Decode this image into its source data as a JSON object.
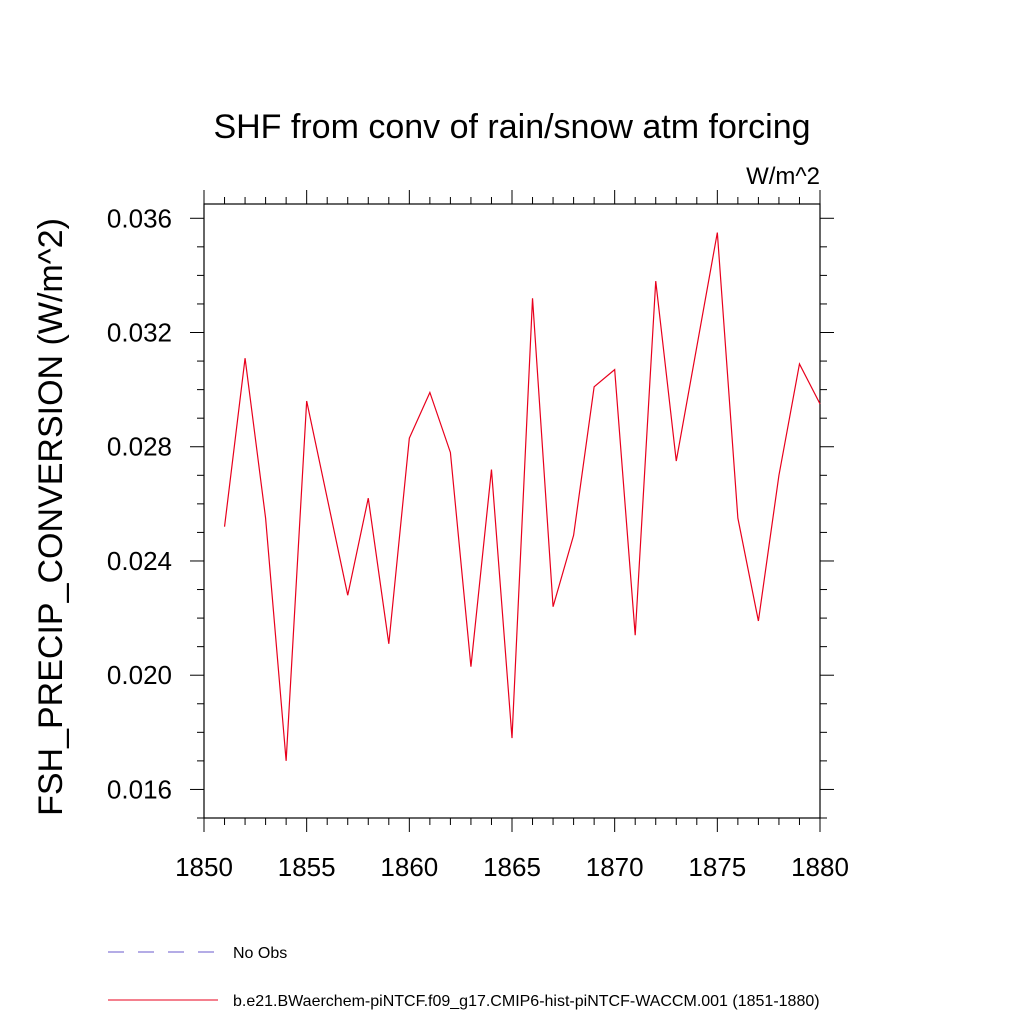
{
  "chart_data": {
    "type": "line",
    "title": "SHF from conv of rain/snow atm forcing",
    "units": "W/m^2",
    "ylabel": "FSH_PRECIP_CONVERSION  (W/m^2)",
    "xlabel": "",
    "xlim": [
      1850,
      1880
    ],
    "ylim": [
      0.015,
      0.0365
    ],
    "x_ticks": [
      "1850",
      "1855",
      "1860",
      "1865",
      "1870",
      "1875",
      "1880"
    ],
    "y_ticks": [
      "0.016",
      "0.020",
      "0.024",
      "0.028",
      "0.032",
      "0.036"
    ],
    "grid": false,
    "series": [
      {
        "name": "b.e21.BWaerchem-piNTCF.f09_g17.CMIP6-hist-piNTCF-WACCM.001 (1851-1880)",
        "color": "#e8001c",
        "x": [
          1851,
          1852,
          1853,
          1854,
          1855,
          1856,
          1857,
          1858,
          1859,
          1860,
          1861,
          1862,
          1863,
          1864,
          1865,
          1866,
          1867,
          1868,
          1869,
          1870,
          1871,
          1872,
          1873,
          1874,
          1875,
          1876,
          1877,
          1878,
          1879,
          1880
        ],
        "values": [
          0.0252,
          0.0311,
          0.0255,
          0.017,
          0.0296,
          0.0262,
          0.0228,
          0.0262,
          0.0211,
          0.0283,
          0.0299,
          0.0278,
          0.0203,
          0.0272,
          0.0178,
          0.0332,
          0.0224,
          0.0249,
          0.0301,
          0.0307,
          0.0214,
          0.0338,
          0.0275,
          0.0315,
          0.0355,
          0.0255,
          0.0219,
          0.027,
          0.0309,
          0.0295
        ]
      }
    ],
    "legend": {
      "placement": "bottom",
      "entries": [
        {
          "label": "No Obs",
          "style": "dashed",
          "color": "#6a5acd"
        },
        {
          "label": "b.e21.BWaerchem-piNTCF.f09_g17.CMIP6-hist-piNTCF-WACCM.001 (1851-1880)",
          "style": "solid",
          "color": "#e8001c"
        }
      ]
    }
  }
}
